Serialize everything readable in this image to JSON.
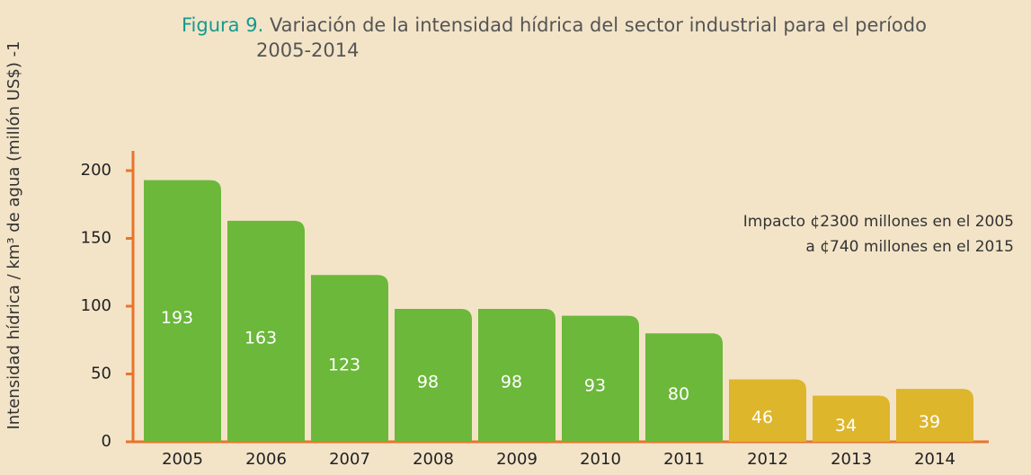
{
  "chart_data": {
    "type": "bar",
    "figure_label": "Figura 9.",
    "title": "Variación de la intensidad hídrica del sector industrial para el período",
    "title_line2": "2005-2014",
    "y_label": "Intensidad hídrica / km³ de agua (millón US$) -1",
    "annotations": [
      "Impacto ¢2300 millones en el 2005",
      "a ¢740 millones en el 2015"
    ],
    "categories": [
      "2005",
      "2006",
      "2007",
      "2008",
      "2009",
      "2010",
      "2011",
      "2012",
      "2013",
      "2014"
    ],
    "values": [
      193,
      163,
      123,
      98,
      98,
      93,
      80,
      46,
      34,
      39
    ],
    "colors": [
      "#6cb83a",
      "#6cb83a",
      "#6cb83a",
      "#6cb83a",
      "#6cb83a",
      "#6cb83a",
      "#6cb83a",
      "#ddb62c",
      "#ddb62c",
      "#ddb62c"
    ],
    "ylim": [
      0,
      200
    ],
    "yticks": [
      0,
      50,
      100,
      150,
      200
    ]
  }
}
